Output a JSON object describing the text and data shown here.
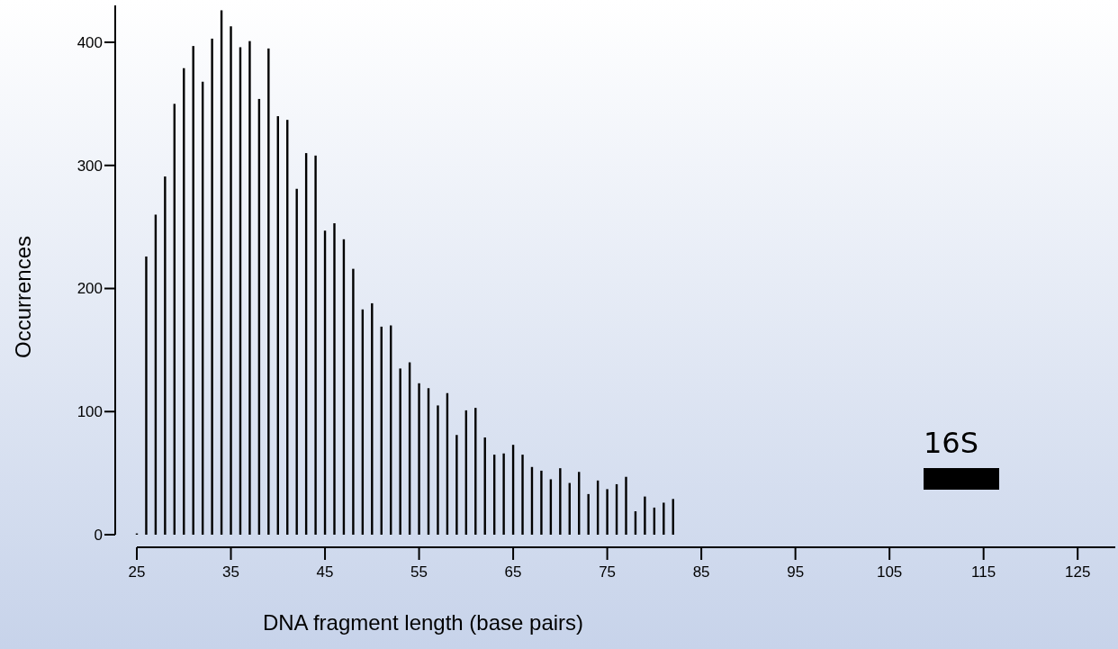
{
  "chart_data": {
    "type": "bar",
    "xlabel": "DNA fragment length (base pairs)",
    "ylabel": "Occurrences",
    "x": [
      25,
      26,
      27,
      28,
      29,
      30,
      31,
      32,
      33,
      34,
      35,
      36,
      37,
      38,
      39,
      40,
      41,
      42,
      43,
      44,
      45,
      46,
      47,
      48,
      49,
      50,
      51,
      52,
      53,
      54,
      55,
      56,
      57,
      58,
      59,
      60,
      61,
      62,
      63,
      64,
      65,
      66,
      67,
      68,
      69,
      70,
      71,
      72,
      73,
      74,
      75,
      76,
      77,
      78,
      79,
      80,
      81,
      82
    ],
    "values": [
      1,
      226,
      260,
      291,
      350,
      379,
      397,
      368,
      403,
      426,
      413,
      396,
      401,
      354,
      395,
      340,
      337,
      281,
      310,
      308,
      247,
      253,
      240,
      216,
      183,
      188,
      169,
      170,
      135,
      140,
      123,
      119,
      105,
      115,
      81,
      101,
      103,
      79,
      65,
      66,
      73,
      65,
      55,
      52,
      45,
      54,
      42,
      51,
      33,
      44,
      37,
      41,
      47,
      19,
      31,
      22,
      26,
      29
    ],
    "color": "#000000",
    "xlim": [
      25,
      129
    ],
    "xticks": [
      25,
      35,
      45,
      55,
      65,
      75,
      85,
      95,
      105,
      115,
      125
    ],
    "ylim": [
      0,
      430
    ],
    "yticks": [
      0,
      100,
      200,
      300,
      400
    ],
    "grid": false,
    "annotations": [
      "16S"
    ]
  }
}
